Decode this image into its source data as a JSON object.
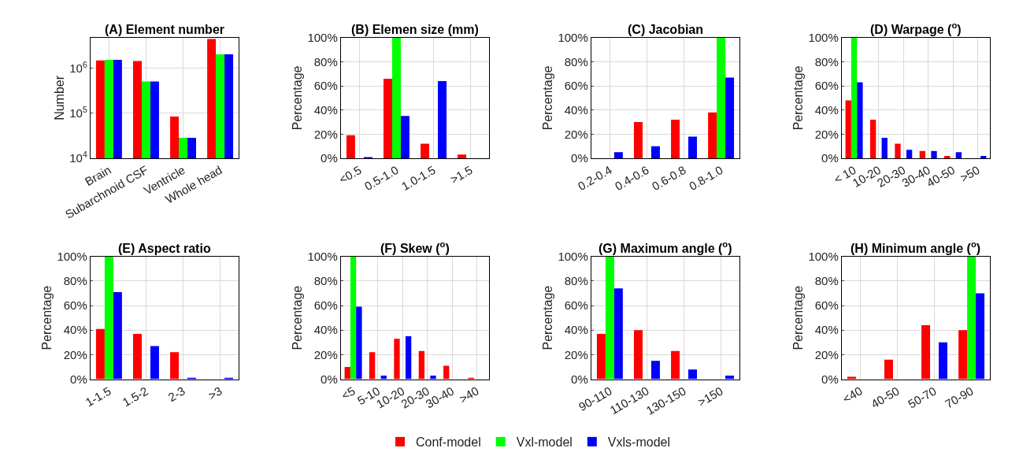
{
  "chart_data": [
    {
      "type": "bar",
      "title": "(A) Element number",
      "ylabel": "Number",
      "log": true,
      "grid": true,
      "legend": "bottom",
      "categories": [
        "Brain",
        "Subarchnoid CSF",
        "Ventricle",
        "Whole head"
      ],
      "ylim": [
        10000,
        4800000
      ],
      "yticks": [
        {
          "value": 10000,
          "label": "10$^{4}$"
        },
        {
          "value": 100000,
          "label": "10$^{5}$"
        },
        {
          "value": 1000000,
          "label": "10$^{6}$"
        }
      ],
      "series": [
        {
          "name": "Conf-model",
          "color": "#ff0000",
          "values": [
            1490000,
            1450000,
            85000,
            4500000
          ]
        },
        {
          "name": "Vxl-model",
          "color": "#00ff00",
          "values": [
            1540000,
            510000,
            28600,
            2050000
          ]
        },
        {
          "name": "Vxls-model",
          "color": "#0000ff",
          "values": [
            1540000,
            510000,
            28600,
            2050000
          ]
        }
      ]
    },
    {
      "type": "bar",
      "title": "(B) Elemen size (mm)",
      "ylabel": "Percentage",
      "grid": true,
      "legend": "bottom",
      "categories": [
        "<0.5",
        "0.5-1.0",
        "1.0-1.5",
        ">1.5"
      ],
      "ylim": [
        0,
        100
      ],
      "yticks": [
        {
          "value": 0,
          "label": "0%"
        },
        {
          "value": 20,
          "label": "20%"
        },
        {
          "value": 40,
          "label": "40%"
        },
        {
          "value": 60,
          "label": "60%"
        },
        {
          "value": 80,
          "label": "80%"
        },
        {
          "value": 100,
          "label": "100%"
        }
      ],
      "series": [
        {
          "name": "Conf-model",
          "color": "#ff0000",
          "values": [
            19,
            66,
            12,
            3
          ]
        },
        {
          "name": "Vxl-model",
          "color": "#00ff00",
          "values": [
            0,
            100,
            0,
            0
          ]
        },
        {
          "name": "Vxls-model",
          "color": "#0000ff",
          "values": [
            1,
            35,
            64,
            0
          ]
        }
      ]
    },
    {
      "type": "bar",
      "title": "(C) Jacobian",
      "ylabel": "Percentage",
      "grid": true,
      "legend": "bottom",
      "categories": [
        "0.2-0.4",
        "0.4-0.6",
        "0.6-0.8",
        "0.8-1.0"
      ],
      "ylim": [
        0,
        100
      ],
      "yticks": [
        {
          "value": 0,
          "label": "0%"
        },
        {
          "value": 20,
          "label": "20%"
        },
        {
          "value": 40,
          "label": "40%"
        },
        {
          "value": 60,
          "label": "60%"
        },
        {
          "value": 80,
          "label": "80%"
        },
        {
          "value": 100,
          "label": "100%"
        }
      ],
      "series": [
        {
          "name": "Conf-model",
          "color": "#ff0000",
          "values": [
            0,
            30,
            32,
            38
          ]
        },
        {
          "name": "Vxl-model",
          "color": "#00ff00",
          "values": [
            0,
            0,
            0,
            100
          ]
        },
        {
          "name": "Vxls-model",
          "color": "#0000ff",
          "values": [
            5,
            10,
            18,
            67
          ]
        }
      ]
    },
    {
      "type": "bar",
      "title": "(D) Warpage ($^{o}$)",
      "ylabel": "Percentage",
      "grid": true,
      "legend": "bottom",
      "categories": [
        "< 10",
        "10-20",
        "20-30",
        "30-40",
        "40-50",
        ">50"
      ],
      "ylim": [
        0,
        100
      ],
      "yticks": [
        {
          "value": 0,
          "label": "0%"
        },
        {
          "value": 20,
          "label": "20%"
        },
        {
          "value": 40,
          "label": "40%"
        },
        {
          "value": 60,
          "label": "60%"
        },
        {
          "value": 80,
          "label": "80%"
        },
        {
          "value": 100,
          "label": "100%"
        }
      ],
      "series": [
        {
          "name": "Conf-model",
          "color": "#ff0000",
          "values": [
            48,
            32,
            12,
            6,
            2,
            0
          ]
        },
        {
          "name": "Vxl-model",
          "color": "#00ff00",
          "values": [
            100,
            0,
            0,
            0,
            0,
            0
          ]
        },
        {
          "name": "Vxls-model",
          "color": "#0000ff",
          "values": [
            63,
            17,
            7,
            6,
            5,
            2
          ]
        }
      ]
    },
    {
      "type": "bar",
      "title": "(E) Aspect ratio",
      "ylabel": "Percentage",
      "grid": true,
      "legend": "bottom",
      "categories": [
        "1-1.5",
        "1.5-2",
        "2-3",
        ">3"
      ],
      "ylim": [
        0,
        100
      ],
      "yticks": [
        {
          "value": 0,
          "label": "0%"
        },
        {
          "value": 20,
          "label": "20%"
        },
        {
          "value": 40,
          "label": "40%"
        },
        {
          "value": 60,
          "label": "60%"
        },
        {
          "value": 80,
          "label": "80%"
        },
        {
          "value": 100,
          "label": "100%"
        }
      ],
      "series": [
        {
          "name": "Conf-model",
          "color": "#ff0000",
          "values": [
            41,
            37,
            22,
            0
          ]
        },
        {
          "name": "Vxl-model",
          "color": "#00ff00",
          "values": [
            100,
            0,
            0,
            0
          ]
        },
        {
          "name": "Vxls-model",
          "color": "#0000ff",
          "values": [
            71,
            27,
            1,
            1
          ]
        }
      ]
    },
    {
      "type": "bar",
      "title": "(F) Skew ($^{o}$)",
      "ylabel": "Percentage",
      "grid": true,
      "legend": "bottom",
      "categories": [
        "<5",
        "5-10",
        "10-20",
        "20-30",
        "30-40",
        ">40"
      ],
      "ylim": [
        0,
        100
      ],
      "yticks": [
        {
          "value": 0,
          "label": "0%"
        },
        {
          "value": 20,
          "label": "20%"
        },
        {
          "value": 40,
          "label": "40%"
        },
        {
          "value": 60,
          "label": "60%"
        },
        {
          "value": 80,
          "label": "80%"
        },
        {
          "value": 100,
          "label": "100%"
        }
      ],
      "series": [
        {
          "name": "Conf-model",
          "color": "#ff0000",
          "values": [
            10,
            22,
            33,
            23,
            11,
            1
          ]
        },
        {
          "name": "Vxl-model",
          "color": "#00ff00",
          "values": [
            100,
            0,
            0,
            0,
            0,
            0
          ]
        },
        {
          "name": "Vxls-model",
          "color": "#0000ff",
          "values": [
            59,
            3,
            35,
            3,
            0,
            0
          ]
        }
      ]
    },
    {
      "type": "bar",
      "title": "(G) Maximum angle ($^{o}$)",
      "ylabel": "Percentage",
      "grid": true,
      "legend": "bottom",
      "categories": [
        "90-110",
        "110-130",
        "130-150",
        ">150"
      ],
      "ylim": [
        0,
        100
      ],
      "yticks": [
        {
          "value": 0,
          "label": "0%"
        },
        {
          "value": 20,
          "label": "20%"
        },
        {
          "value": 40,
          "label": "40%"
        },
        {
          "value": 60,
          "label": "60%"
        },
        {
          "value": 80,
          "label": "80%"
        },
        {
          "value": 100,
          "label": "100%"
        }
      ],
      "series": [
        {
          "name": "Conf-model",
          "color": "#ff0000",
          "values": [
            37,
            40,
            23,
            0
          ]
        },
        {
          "name": "Vxl-model",
          "color": "#00ff00",
          "values": [
            100,
            0,
            0,
            0
          ]
        },
        {
          "name": "Vxls-model",
          "color": "#0000ff",
          "values": [
            74,
            15,
            8,
            3
          ]
        }
      ]
    },
    {
      "type": "bar",
      "title": "(H) Minimum angle ($^{o}$)",
      "ylabel": "Percentage",
      "grid": true,
      "legend": "bottom",
      "categories": [
        "<40",
        "40-50",
        "50-70",
        "70-90"
      ],
      "ylim": [
        0,
        100
      ],
      "yticks": [
        {
          "value": 0,
          "label": "0%"
        },
        {
          "value": 20,
          "label": "20%"
        },
        {
          "value": 40,
          "label": "40%"
        },
        {
          "value": 60,
          "label": "60%"
        },
        {
          "value": 80,
          "label": "80%"
        },
        {
          "value": 100,
          "label": "100%"
        }
      ],
      "series": [
        {
          "name": "Conf-model",
          "color": "#ff0000",
          "values": [
            2,
            16,
            44,
            40
          ]
        },
        {
          "name": "Vxl-model",
          "color": "#00ff00",
          "values": [
            0,
            0,
            0,
            100
          ]
        },
        {
          "name": "Vxls-model",
          "color": "#0000ff",
          "values": [
            0,
            0,
            30,
            70
          ]
        }
      ]
    }
  ]
}
